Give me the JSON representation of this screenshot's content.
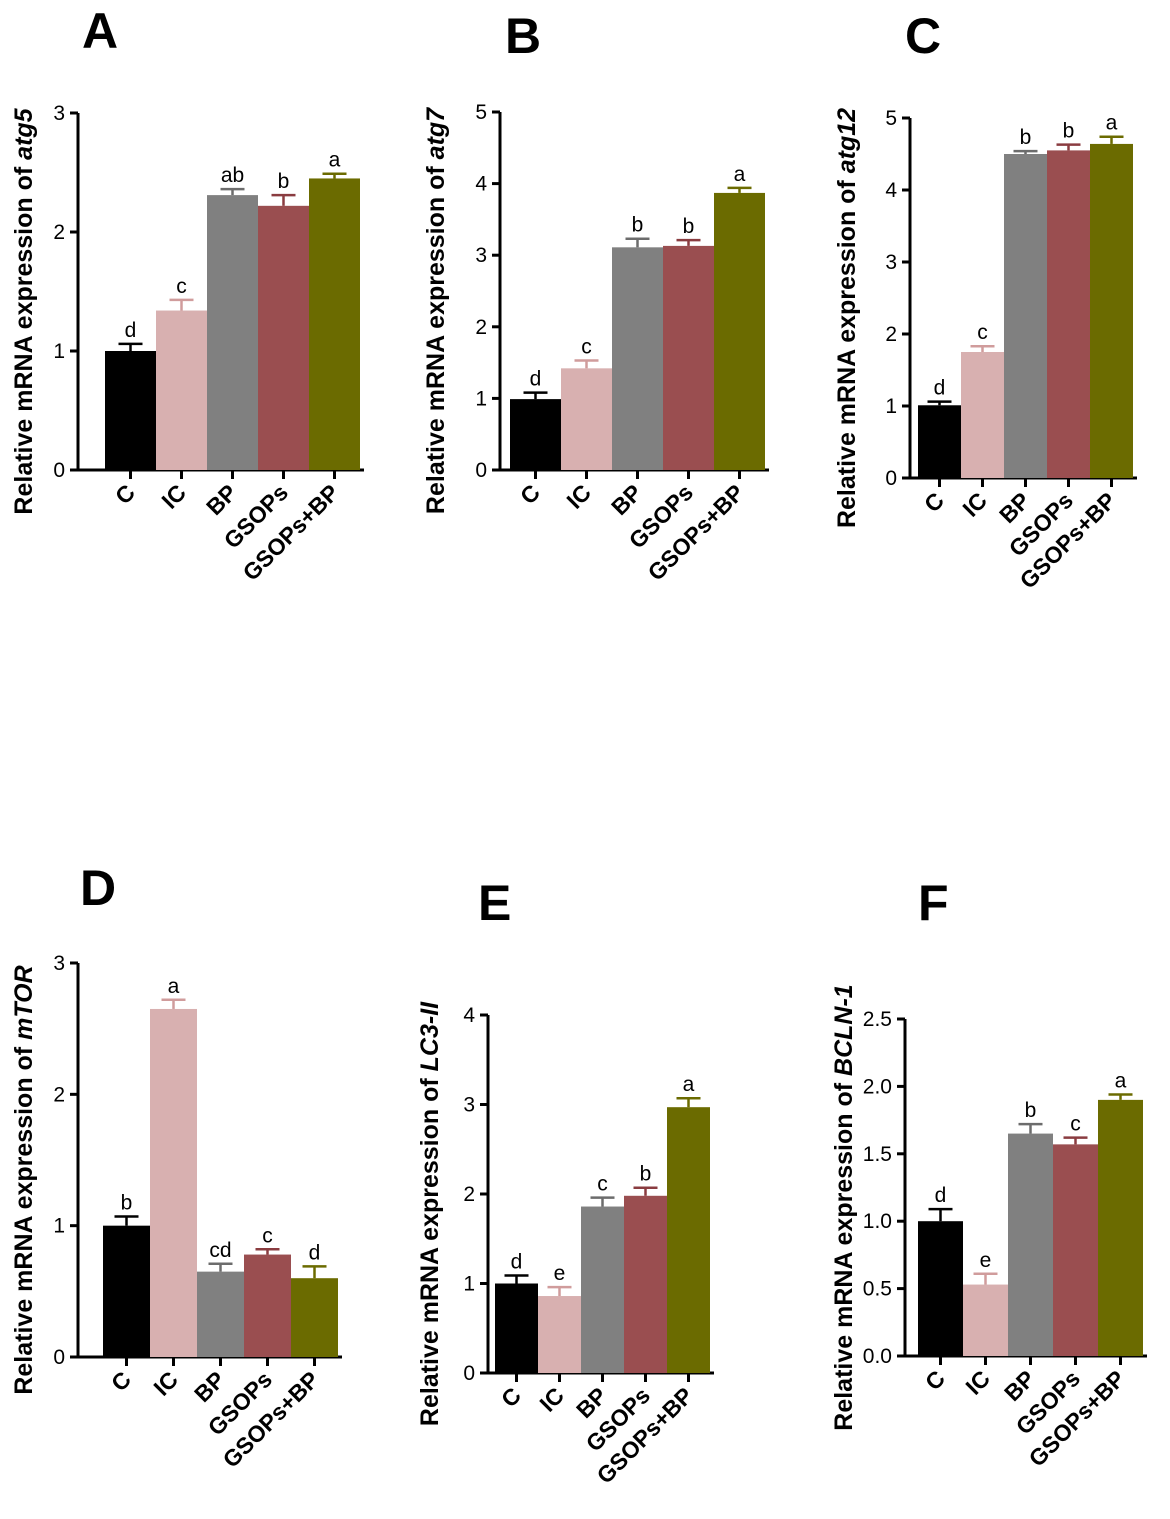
{
  "chart_data": [
    {
      "panel": "A",
      "type": "bar",
      "gene": "atg5",
      "ylabel_prefix": "Relative mRNA expression of ",
      "ylim": [
        0,
        3
      ],
      "yticks": [
        "0",
        "1",
        "2",
        "3"
      ],
      "ytick_values": [
        0,
        1,
        2,
        3
      ],
      "categories": [
        "C",
        "IC",
        "BP",
        "GSOPs",
        "GSOPs+BP"
      ],
      "values": [
        1.0,
        1.34,
        2.31,
        2.22,
        2.45
      ],
      "errors": [
        0.06,
        0.09,
        0.05,
        0.09,
        0.04
      ],
      "significance": [
        "d",
        "c",
        "ab",
        "b",
        "a"
      ]
    },
    {
      "panel": "B",
      "type": "bar",
      "gene": "atg7",
      "ylabel_prefix": "Relative mRNA expression of ",
      "ylim": [
        0,
        5
      ],
      "yticks": [
        "0",
        "1",
        "2",
        "3",
        "4",
        "5"
      ],
      "ytick_values": [
        0,
        1,
        2,
        3,
        4,
        5
      ],
      "categories": [
        "C",
        "IC",
        "BP",
        "GSOPs",
        "GSOPs+BP"
      ],
      "values": [
        0.99,
        1.42,
        3.11,
        3.13,
        3.87
      ],
      "errors": [
        0.09,
        0.11,
        0.12,
        0.08,
        0.07
      ],
      "significance": [
        "d",
        "c",
        "b",
        "b",
        "a"
      ]
    },
    {
      "panel": "C",
      "type": "bar",
      "gene": "atg12",
      "ylabel_prefix": "Relative mRNA expression of ",
      "ylim": [
        0,
        5
      ],
      "yticks": [
        "0",
        "1",
        "2",
        "3",
        "4",
        "5"
      ],
      "ytick_values": [
        0,
        1,
        2,
        3,
        4,
        5
      ],
      "categories": [
        "C",
        "IC",
        "BP",
        "GSOPs",
        "GSOPs+BP"
      ],
      "values": [
        1.01,
        1.75,
        4.5,
        4.55,
        4.64
      ],
      "errors": [
        0.05,
        0.08,
        0.04,
        0.08,
        0.1
      ],
      "significance": [
        "d",
        "c",
        "b",
        "b",
        "a"
      ]
    },
    {
      "panel": "D",
      "type": "bar",
      "gene": "mTOR",
      "ylabel_prefix": "Relative mRNA expression of ",
      "ylim": [
        0,
        3
      ],
      "yticks": [
        "0",
        "1",
        "2",
        "3"
      ],
      "ytick_values": [
        0,
        1,
        2,
        3
      ],
      "categories": [
        "C",
        "IC",
        "BP",
        "GSOPs",
        "GSOPs+BP"
      ],
      "values": [
        1.0,
        2.65,
        0.65,
        0.78,
        0.6
      ],
      "errors": [
        0.07,
        0.07,
        0.06,
        0.04,
        0.09
      ],
      "significance": [
        "b",
        "a",
        "cd",
        "c",
        "d"
      ]
    },
    {
      "panel": "E",
      "type": "bar",
      "gene": "LC3-II",
      "ylabel_prefix": "Relative mRNA expression of ",
      "ylim": [
        0,
        4
      ],
      "yticks": [
        "0",
        "1",
        "2",
        "3",
        "4"
      ],
      "ytick_values": [
        0,
        1,
        2,
        3,
        4
      ],
      "categories": [
        "C",
        "IC",
        "BP",
        "GSOPs",
        "GSOPs+BP"
      ],
      "values": [
        1.0,
        0.86,
        1.86,
        1.98,
        2.97
      ],
      "errors": [
        0.09,
        0.1,
        0.1,
        0.09,
        0.1
      ],
      "significance": [
        "d",
        "e",
        "c",
        "b",
        "a"
      ]
    },
    {
      "panel": "F",
      "type": "bar",
      "gene": "BCLN-1",
      "ylabel_prefix": "Relative mRNA expression of ",
      "ylim": [
        0,
        2.5
      ],
      "yticks": [
        "0.0",
        "0.5",
        "1.0",
        "1.5",
        "2.0",
        "2.5"
      ],
      "ytick_values": [
        0,
        0.5,
        1,
        1.5,
        2,
        2.5
      ],
      "categories": [
        "C",
        "IC",
        "BP",
        "GSOPs",
        "GSOPs+BP"
      ],
      "values": [
        1.0,
        0.53,
        1.65,
        1.57,
        1.9
      ],
      "errors": [
        0.09,
        0.08,
        0.07,
        0.05,
        0.04
      ],
      "significance": [
        "d",
        "e",
        "b",
        "c",
        "a"
      ]
    }
  ],
  "colors": {
    "bars": [
      "#000000",
      "#d8b0b0",
      "#808080",
      "#9a4e50",
      "#6b6b00"
    ],
    "errors": [
      "#000000",
      "#d09c9c",
      "#6c6c6c",
      "#8a3c40",
      "#6b6b00"
    ],
    "axis": "#000000"
  }
}
